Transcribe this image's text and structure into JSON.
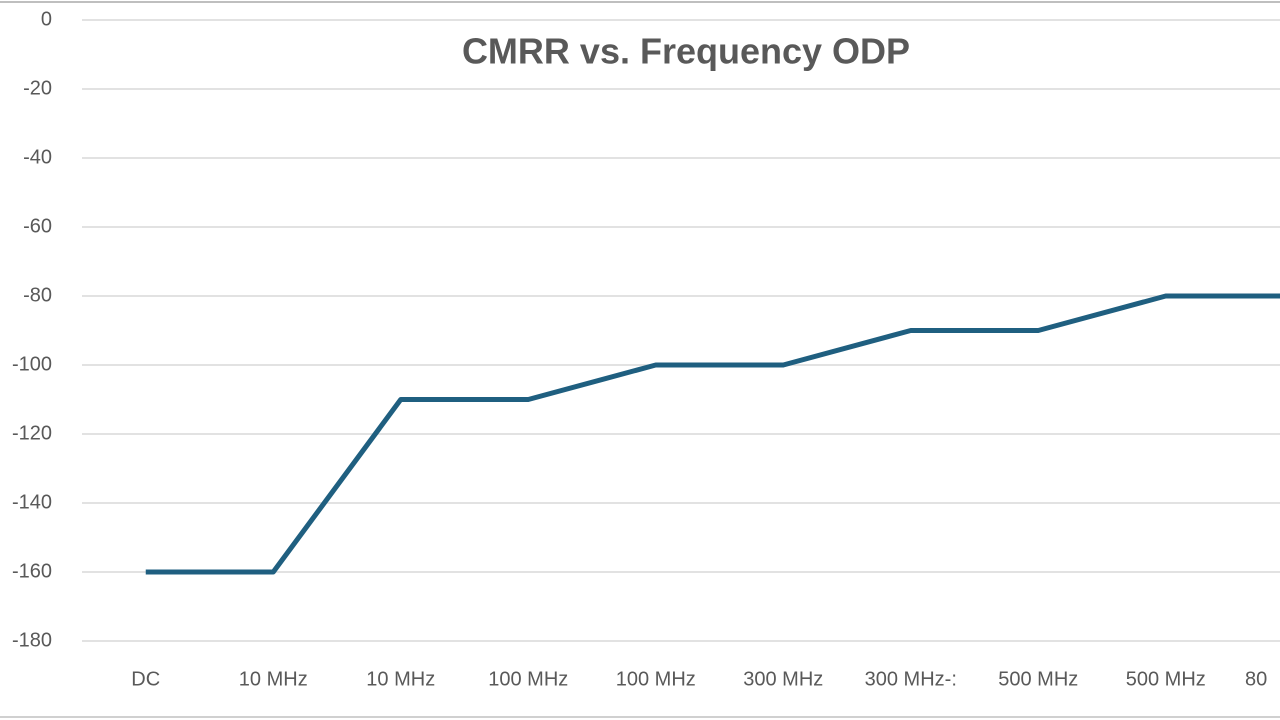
{
  "chart_data": {
    "type": "line",
    "title": "CMRR vs. Frequency ODP",
    "categories": [
      "DC",
      "10 MHz",
      "10 MHz",
      "100 MHz",
      "100 MHz",
      "300 MHz",
      "300 MHz-:",
      "500 MHz",
      "500 MHz",
      "80"
    ],
    "series": [
      {
        "name": "CMRR",
        "color": "#1f5f80",
        "values": [
          -160,
          -160,
          -110,
          -110,
          -100,
          -100,
          -90,
          -90,
          -80,
          -80
        ]
      }
    ],
    "ylim": [
      -180,
      0
    ],
    "yticks": [
      0,
      -20,
      -40,
      -60,
      -80,
      -100,
      -120,
      -140,
      -160,
      -180
    ],
    "grid": true
  }
}
